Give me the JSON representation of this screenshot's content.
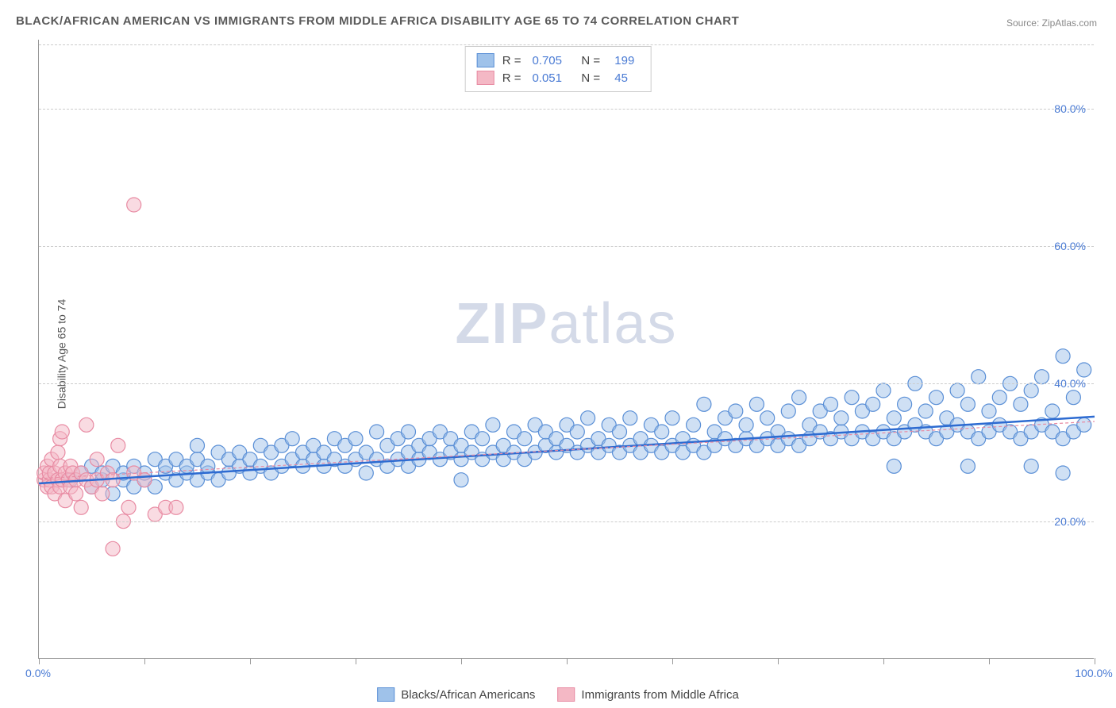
{
  "title": "BLACK/AFRICAN AMERICAN VS IMMIGRANTS FROM MIDDLE AFRICA DISABILITY AGE 65 TO 74 CORRELATION CHART",
  "source_label": "Source: ",
  "source_value": "ZipAtlas.com",
  "y_axis_label": "Disability Age 65 to 74",
  "watermark_zip": "ZIP",
  "watermark_atlas": "atlas",
  "chart": {
    "type": "scatter",
    "xlim": [
      0,
      100
    ],
    "ylim": [
      0,
      90
    ],
    "x_ticks": [
      0,
      10,
      20,
      30,
      40,
      50,
      60,
      70,
      80,
      90,
      100
    ],
    "x_tick_labels_shown": {
      "0": "0.0%",
      "100": "100.0%"
    },
    "y_ticks": [
      20,
      40,
      60,
      80
    ],
    "y_tick_labels": {
      "20": "20.0%",
      "40": "40.0%",
      "60": "60.0%",
      "80": "80.0%"
    },
    "grid_color": "#cccccc",
    "grid_dash": true,
    "background_color": "#ffffff",
    "marker_radius": 9,
    "marker_opacity": 0.5,
    "marker_stroke_width": 1.2,
    "series": [
      {
        "name": "Blacks/African Americans",
        "color_fill": "#9fc2ea",
        "color_stroke": "#5a8fd6",
        "R": "0.705",
        "N": "199",
        "trendline": {
          "x1": 0,
          "y1": 25.5,
          "x2": 100,
          "y2": 35.2,
          "color": "#2d6bd1",
          "width": 2.5
        },
        "points": [
          [
            3,
            26
          ],
          [
            4,
            27
          ],
          [
            5,
            25
          ],
          [
            5,
            28
          ],
          [
            6,
            26
          ],
          [
            6,
            27
          ],
          [
            7,
            24
          ],
          [
            7,
            28
          ],
          [
            8,
            26
          ],
          [
            8,
            27
          ],
          [
            9,
            25
          ],
          [
            9,
            28
          ],
          [
            10,
            26
          ],
          [
            10,
            27
          ],
          [
            11,
            25
          ],
          [
            11,
            29
          ],
          [
            12,
            27
          ],
          [
            12,
            28
          ],
          [
            13,
            26
          ],
          [
            13,
            29
          ],
          [
            14,
            27
          ],
          [
            14,
            28
          ],
          [
            15,
            26
          ],
          [
            15,
            29
          ],
          [
            15,
            31
          ],
          [
            16,
            27
          ],
          [
            16,
            28
          ],
          [
            17,
            26
          ],
          [
            17,
            30
          ],
          [
            18,
            27
          ],
          [
            18,
            29
          ],
          [
            19,
            28
          ],
          [
            19,
            30
          ],
          [
            20,
            27
          ],
          [
            20,
            29
          ],
          [
            21,
            28
          ],
          [
            21,
            31
          ],
          [
            22,
            27
          ],
          [
            22,
            30
          ],
          [
            23,
            28
          ],
          [
            23,
            31
          ],
          [
            24,
            29
          ],
          [
            24,
            32
          ],
          [
            25,
            28
          ],
          [
            25,
            30
          ],
          [
            26,
            29
          ],
          [
            26,
            31
          ],
          [
            27,
            28
          ],
          [
            27,
            30
          ],
          [
            28,
            29
          ],
          [
            28,
            32
          ],
          [
            29,
            28
          ],
          [
            29,
            31
          ],
          [
            30,
            29
          ],
          [
            30,
            32
          ],
          [
            31,
            27
          ],
          [
            31,
            30
          ],
          [
            32,
            29
          ],
          [
            32,
            33
          ],
          [
            33,
            28
          ],
          [
            33,
            31
          ],
          [
            34,
            29
          ],
          [
            34,
            32
          ],
          [
            35,
            28
          ],
          [
            35,
            30
          ],
          [
            35,
            33
          ],
          [
            36,
            29
          ],
          [
            36,
            31
          ],
          [
            37,
            30
          ],
          [
            37,
            32
          ],
          [
            38,
            29
          ],
          [
            38,
            33
          ],
          [
            39,
            30
          ],
          [
            39,
            32
          ],
          [
            40,
            29
          ],
          [
            40,
            31
          ],
          [
            40,
            26
          ],
          [
            41,
            30
          ],
          [
            41,
            33
          ],
          [
            42,
            29
          ],
          [
            42,
            32
          ],
          [
            43,
            30
          ],
          [
            43,
            34
          ],
          [
            44,
            29
          ],
          [
            44,
            31
          ],
          [
            45,
            30
          ],
          [
            45,
            33
          ],
          [
            46,
            29
          ],
          [
            46,
            32
          ],
          [
            47,
            30
          ],
          [
            47,
            34
          ],
          [
            48,
            31
          ],
          [
            48,
            33
          ],
          [
            49,
            30
          ],
          [
            49,
            32
          ],
          [
            50,
            31
          ],
          [
            50,
            34
          ],
          [
            51,
            30
          ],
          [
            51,
            33
          ],
          [
            52,
            31
          ],
          [
            52,
            35
          ],
          [
            53,
            30
          ],
          [
            53,
            32
          ],
          [
            54,
            31
          ],
          [
            54,
            34
          ],
          [
            55,
            30
          ],
          [
            55,
            33
          ],
          [
            56,
            31
          ],
          [
            56,
            35
          ],
          [
            57,
            30
          ],
          [
            57,
            32
          ],
          [
            58,
            31
          ],
          [
            58,
            34
          ],
          [
            59,
            30
          ],
          [
            59,
            33
          ],
          [
            60,
            31
          ],
          [
            60,
            35
          ],
          [
            61,
            30
          ],
          [
            61,
            32
          ],
          [
            62,
            31
          ],
          [
            62,
            34
          ],
          [
            63,
            30
          ],
          [
            63,
            37
          ],
          [
            64,
            31
          ],
          [
            64,
            33
          ],
          [
            65,
            32
          ],
          [
            65,
            35
          ],
          [
            66,
            31
          ],
          [
            66,
            36
          ],
          [
            67,
            32
          ],
          [
            67,
            34
          ],
          [
            68,
            31
          ],
          [
            68,
            37
          ],
          [
            69,
            32
          ],
          [
            69,
            35
          ],
          [
            70,
            31
          ],
          [
            70,
            33
          ],
          [
            71,
            32
          ],
          [
            71,
            36
          ],
          [
            72,
            31
          ],
          [
            72,
            38
          ],
          [
            73,
            32
          ],
          [
            73,
            34
          ],
          [
            74,
            33
          ],
          [
            74,
            36
          ],
          [
            75,
            32
          ],
          [
            75,
            37
          ],
          [
            76,
            33
          ],
          [
            76,
            35
          ],
          [
            77,
            32
          ],
          [
            77,
            38
          ],
          [
            78,
            33
          ],
          [
            78,
            36
          ],
          [
            79,
            32
          ],
          [
            79,
            37
          ],
          [
            80,
            33
          ],
          [
            80,
            39
          ],
          [
            81,
            32
          ],
          [
            81,
            35
          ],
          [
            82,
            33
          ],
          [
            82,
            37
          ],
          [
            83,
            34
          ],
          [
            83,
            40
          ],
          [
            84,
            33
          ],
          [
            84,
            36
          ],
          [
            85,
            32
          ],
          [
            85,
            38
          ],
          [
            86,
            33
          ],
          [
            86,
            35
          ],
          [
            87,
            34
          ],
          [
            87,
            39
          ],
          [
            88,
            33
          ],
          [
            88,
            37
          ],
          [
            89,
            32
          ],
          [
            89,
            41
          ],
          [
            90,
            33
          ],
          [
            90,
            36
          ],
          [
            91,
            34
          ],
          [
            91,
            38
          ],
          [
            92,
            33
          ],
          [
            92,
            40
          ],
          [
            93,
            32
          ],
          [
            93,
            37
          ],
          [
            94,
            33
          ],
          [
            94,
            39
          ],
          [
            95,
            34
          ],
          [
            95,
            41
          ],
          [
            96,
            33
          ],
          [
            96,
            36
          ],
          [
            97,
            32
          ],
          [
            97,
            44
          ],
          [
            98,
            33
          ],
          [
            98,
            38
          ],
          [
            99,
            34
          ],
          [
            99,
            42
          ],
          [
            81,
            28
          ],
          [
            88,
            28
          ],
          [
            94,
            28
          ],
          [
            97,
            27
          ]
        ]
      },
      {
        "name": "Immigrants from Middle Africa",
        "color_fill": "#f4b8c5",
        "color_stroke": "#e88ba3",
        "R": "0.051",
        "N": "45",
        "trendline": {
          "x1": 0,
          "y1": 26.2,
          "x2": 100,
          "y2": 34.5,
          "color": "#e88ba3",
          "width": 1.2,
          "dash": "4,3"
        },
        "points": [
          [
            0.5,
            26
          ],
          [
            0.5,
            27
          ],
          [
            0.8,
            25
          ],
          [
            0.8,
            28
          ],
          [
            1,
            26
          ],
          [
            1,
            27
          ],
          [
            1.2,
            25
          ],
          [
            1.2,
            29
          ],
          [
            1.5,
            27
          ],
          [
            1.5,
            24
          ],
          [
            1.8,
            26
          ],
          [
            1.8,
            30
          ],
          [
            2,
            25
          ],
          [
            2,
            28
          ],
          [
            2,
            32
          ],
          [
            2.2,
            26
          ],
          [
            2.2,
            33
          ],
          [
            2.5,
            27
          ],
          [
            2.5,
            23
          ],
          [
            2.8,
            26
          ],
          [
            3,
            28
          ],
          [
            3,
            25
          ],
          [
            3.2,
            27
          ],
          [
            3.5,
            26
          ],
          [
            3.5,
            24
          ],
          [
            4,
            27
          ],
          [
            4,
            22
          ],
          [
            4.5,
            26
          ],
          [
            4.5,
            34
          ],
          [
            5,
            25
          ],
          [
            5.5,
            26
          ],
          [
            5.5,
            29
          ],
          [
            6,
            24
          ],
          [
            6.5,
            27
          ],
          [
            7,
            16
          ],
          [
            7,
            26
          ],
          [
            7.5,
            31
          ],
          [
            8,
            20
          ],
          [
            8.5,
            22
          ],
          [
            9,
            27
          ],
          [
            9,
            66
          ],
          [
            10,
            26
          ],
          [
            11,
            21
          ],
          [
            12,
            22
          ],
          [
            13,
            22
          ]
        ]
      }
    ]
  },
  "stats_legend": {
    "r_label": "R =",
    "n_label": "N ="
  },
  "bottom_legend_labels": [
    "Blacks/African Americans",
    "Immigrants from Middle Africa"
  ]
}
